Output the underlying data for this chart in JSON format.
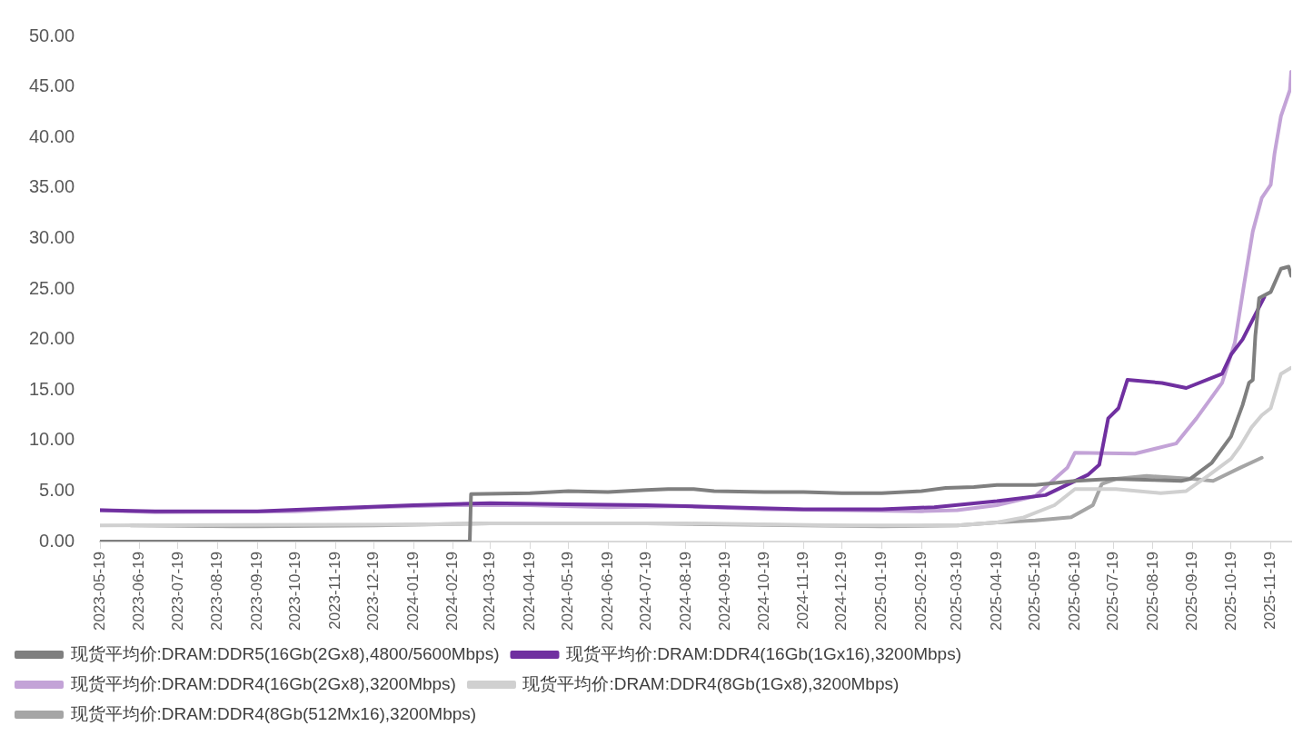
{
  "chart_data": {
    "type": "line",
    "legend": "bottom",
    "grid": false,
    "line_style": "solid",
    "xlim": [
      "2023-05-19",
      "2025-12-05"
    ],
    "xticks": [
      "2023-05-19",
      "2023-06-19",
      "2023-07-19",
      "2023-08-19",
      "2023-09-19",
      "2023-10-19",
      "2023-11-19",
      "2023-12-19",
      "2024-01-19",
      "2024-02-19",
      "2024-03-19",
      "2024-04-19",
      "2024-05-19",
      "2024-06-19",
      "2024-07-19",
      "2024-08-19",
      "2024-09-19",
      "2024-10-19",
      "2024-11-19",
      "2024-12-19",
      "2025-01-19",
      "2025-02-19",
      "2025-03-19",
      "2025-04-19",
      "2025-05-19",
      "2025-06-19",
      "2025-07-19",
      "2025-08-19",
      "2025-09-19",
      "2025-10-19",
      "2025-11-19"
    ],
    "ylim": [
      0,
      50
    ],
    "yticks": [
      {
        "value": 0,
        "label": "0.00"
      },
      {
        "value": 5,
        "label": "5.00"
      },
      {
        "value": 10,
        "label": "10.00"
      },
      {
        "value": 15,
        "label": "15.00"
      },
      {
        "value": 20,
        "label": "20.00"
      },
      {
        "value": 25,
        "label": "25.00"
      },
      {
        "value": 30,
        "label": "30.00"
      },
      {
        "value": 35,
        "label": "35.00"
      },
      {
        "value": 40,
        "label": "40.00"
      },
      {
        "value": 45,
        "label": "45.00"
      },
      {
        "value": 50,
        "label": "50.00"
      }
    ],
    "series": [
      {
        "name": "现货平均价:DRAM:DDR5(16Gb(2Gx8),4800/5600Mbps)",
        "color": "#7f7f7f",
        "x": [
          "2023-05-19",
          "2024-03-03",
          "2024-03-04",
          "2024-04-19",
          "2024-05-19",
          "2024-06-19",
          "2024-07-19",
          "2024-08-05",
          "2024-08-25",
          "2024-09-10",
          "2024-10-19",
          "2024-11-19",
          "2024-12-19",
          "2025-01-19",
          "2025-02-19",
          "2025-03-10",
          "2025-04-01",
          "2025-04-19",
          "2025-05-19",
          "2025-06-19",
          "2025-07-19",
          "2025-08-19",
          "2025-09-10",
          "2025-09-17",
          "2025-10-04",
          "2025-10-19",
          "2025-10-28",
          "2025-11-02",
          "2025-11-05",
          "2025-11-07",
          "2025-11-10",
          "2025-11-19",
          "2025-11-27",
          "2025-12-03",
          "2025-12-05"
        ],
        "values": [
          0,
          0,
          4.7,
          4.8,
          5.0,
          4.9,
          5.1,
          5.2,
          5.2,
          5.0,
          4.9,
          4.9,
          4.8,
          4.8,
          5.0,
          5.3,
          5.4,
          5.6,
          5.6,
          6.0,
          6.2,
          6.1,
          6.0,
          6.2,
          7.8,
          10.4,
          13.5,
          15.7,
          16.0,
          20.4,
          24.1,
          24.7,
          27.0,
          27.2,
          26.3
        ]
      },
      {
        "name": "现货平均价:DRAM:DDR4(16Gb(1Gx16),3200Mbps)",
        "color": "#7030a0",
        "x": [
          "2023-05-19",
          "2023-07-01",
          "2023-09-19",
          "2023-11-19",
          "2024-01-19",
          "2024-03-19",
          "2024-05-19",
          "2024-07-19",
          "2024-09-19",
          "2024-11-19",
          "2025-01-19",
          "2025-03-01",
          "2025-04-19",
          "2025-05-27",
          "2025-06-29",
          "2025-07-08",
          "2025-07-15",
          "2025-07-23",
          "2025-07-30",
          "2025-08-26",
          "2025-09-14",
          "2025-10-12",
          "2025-10-19",
          "2025-10-28",
          "2025-11-14"
        ],
        "values": [
          3.1,
          3.0,
          3.0,
          3.3,
          3.6,
          3.8,
          3.7,
          3.6,
          3.4,
          3.2,
          3.2,
          3.4,
          4.0,
          4.6,
          6.6,
          7.6,
          12.2,
          13.2,
          16.0,
          15.7,
          15.2,
          16.6,
          18.5,
          20.0,
          24.2
        ]
      },
      {
        "name": "现货平均价:DRAM:DDR4(16Gb(2Gx8),3200Mbps)",
        "color": "#c3a3d7",
        "x": [
          "2023-05-19",
          "2023-07-01",
          "2023-10-19",
          "2023-12-19",
          "2024-02-19",
          "2024-04-19",
          "2024-06-19",
          "2024-08-19",
          "2024-10-19",
          "2024-12-19",
          "2025-02-19",
          "2025-03-19",
          "2025-04-19",
          "2025-05-19",
          "2025-06-13",
          "2025-06-19",
          "2025-08-05",
          "2025-09-06",
          "2025-09-22",
          "2025-10-12",
          "2025-10-22",
          "2025-10-29",
          "2025-11-05",
          "2025-11-12",
          "2025-11-19",
          "2025-11-22",
          "2025-11-27",
          "2025-12-04",
          "2025-12-05"
        ],
        "values": [
          3.1,
          2.9,
          3.0,
          3.4,
          3.6,
          3.6,
          3.4,
          3.5,
          3.2,
          3.1,
          3.0,
          3.1,
          3.6,
          4.5,
          7.3,
          8.8,
          8.7,
          9.7,
          12.2,
          15.7,
          19.7,
          25.3,
          30.7,
          34.0,
          35.3,
          38.4,
          42.1,
          44.7,
          46.5
        ]
      },
      {
        "name": "现货平均价:DRAM:DDR4(8Gb(1Gx8),3200Mbps)",
        "color": "#d0d0d0",
        "x": [
          "2023-05-19",
          "2024-01-19",
          "2024-03-19",
          "2024-08-19",
          "2024-12-19",
          "2025-03-19",
          "2025-04-19",
          "2025-05-10",
          "2025-06-03",
          "2025-06-19",
          "2025-07-21",
          "2025-08-25",
          "2025-09-14",
          "2025-10-02",
          "2025-10-19",
          "2025-10-26",
          "2025-11-04",
          "2025-11-12",
          "2025-11-19",
          "2025-11-27",
          "2025-12-05"
        ],
        "values": [
          1.6,
          1.7,
          1.8,
          1.8,
          1.6,
          1.6,
          1.9,
          2.4,
          3.6,
          5.2,
          5.2,
          4.8,
          5.0,
          6.6,
          8.2,
          9.4,
          11.3,
          12.5,
          13.2,
          16.6,
          17.2
        ]
      },
      {
        "name": "现货平均价:DRAM:DDR4(8Gb(512Mx16),3200Mbps)",
        "color": "#a5a5a5",
        "x": [
          "2023-06-12",
          "2023-09-19",
          "2023-12-19",
          "2024-03-19",
          "2024-07-19",
          "2024-11-19",
          "2025-01-19",
          "2025-03-19",
          "2025-04-19",
          "2025-05-19",
          "2025-06-16",
          "2025-07-03",
          "2025-07-10",
          "2025-07-21",
          "2025-08-14",
          "2025-09-19",
          "2025-10-05",
          "2025-10-26",
          "2025-11-12"
        ],
        "values": [
          1.6,
          1.5,
          1.6,
          1.8,
          1.8,
          1.6,
          1.5,
          1.6,
          1.9,
          2.1,
          2.4,
          3.6,
          5.7,
          6.2,
          6.5,
          6.2,
          6.0,
          7.3,
          8.3
        ]
      }
    ]
  }
}
